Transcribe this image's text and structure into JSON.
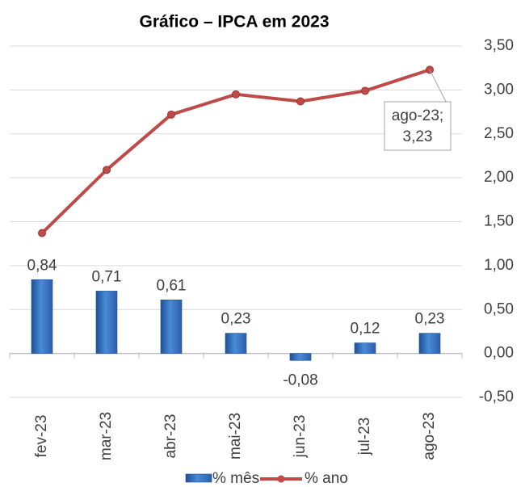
{
  "chart_data": {
    "type": "bar",
    "title": "Gráfico – IPCA em 2023",
    "categories": [
      "fev-23",
      "mar-23",
      "abr-23",
      "mai-23",
      "jun-23",
      "jul-23",
      "ago-23"
    ],
    "series": [
      {
        "name": "% mês",
        "type": "bar",
        "color": "#3b78c9",
        "values": [
          0.84,
          0.71,
          0.61,
          0.23,
          -0.08,
          0.12,
          0.23
        ],
        "value_labels": [
          "0,84",
          "0,71",
          "0,61",
          "0,23",
          "-0,08",
          "0,12",
          "0,23"
        ]
      },
      {
        "name": "% ano",
        "type": "line",
        "color": "#be4b48",
        "values": [
          1.37,
          2.09,
          2.72,
          2.95,
          2.87,
          2.99,
          3.23
        ]
      }
    ],
    "annotation": [
      "ago-23;",
      "3,23"
    ],
    "ylim": [
      -0.5,
      3.5
    ],
    "yticks": [
      {
        "value": -0.5,
        "label": "-0,50"
      },
      {
        "value": 0,
        "label": "0,00"
      },
      {
        "value": 0.5,
        "label": "0,50"
      },
      {
        "value": 1,
        "label": "1,00"
      },
      {
        "value": 1.5,
        "label": "1,50"
      },
      {
        "value": 2,
        "label": "2,00"
      },
      {
        "value": 2.5,
        "label": "2,50"
      },
      {
        "value": 3,
        "label": "3,00"
      },
      {
        "value": 3.5,
        "label": "3,50"
      }
    ],
    "grid": true
  }
}
